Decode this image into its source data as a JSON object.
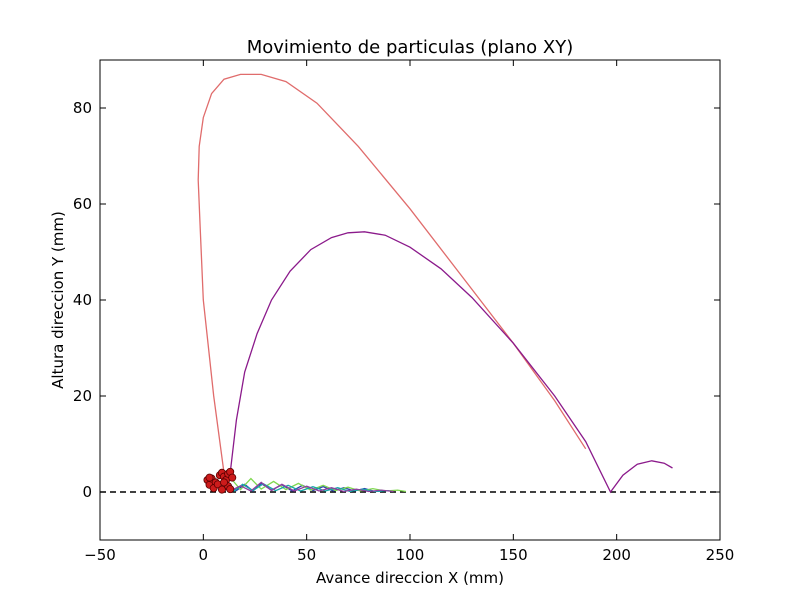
{
  "chart_data": {
    "type": "line",
    "title": "Movimiento de particulas (plano XY)",
    "xlabel": "Avance direccion X (mm)",
    "ylabel": "Altura direccion Y (mm)",
    "xlim": [
      -50,
      250
    ],
    "ylim": [
      -10,
      90
    ],
    "xticks": [
      -50,
      0,
      50,
      100,
      150,
      200,
      250
    ],
    "yticks": [
      0,
      20,
      40,
      60,
      80
    ],
    "xtick_labels": [
      "−50",
      "0",
      "50",
      "100",
      "150",
      "200",
      "250"
    ],
    "ytick_labels": [
      "0",
      "20",
      "40",
      "60",
      "80"
    ],
    "grid": false,
    "legend": "none",
    "reference_line": {
      "y": 0,
      "style": "dashed",
      "color": "#000000"
    },
    "series": [
      {
        "color": "#e06c6c",
        "x": [
          10,
          5,
          0,
          -1.5,
          -2.5,
          -2,
          0,
          4,
          10,
          18,
          28,
          40,
          55,
          75,
          100,
          125,
          150,
          170,
          185
        ],
        "y": [
          4,
          20,
          40,
          55,
          65,
          72,
          78,
          83,
          86,
          87,
          87,
          85.5,
          81,
          72,
          59,
          45,
          31,
          19,
          9
        ]
      },
      {
        "color": "#8b1a8b",
        "x": [
          13,
          16,
          20,
          26,
          33,
          42,
          52,
          62,
          70,
          78,
          88,
          100,
          115,
          130,
          150,
          170,
          185,
          197,
          203,
          210,
          217,
          223,
          227
        ],
        "y": [
          4,
          15,
          25,
          33,
          40,
          46,
          50.5,
          53,
          54,
          54.2,
          53.5,
          51,
          46.5,
          40.5,
          31,
          20,
          10.5,
          0,
          3.5,
          5.8,
          6.5,
          6,
          5
        ]
      },
      {
        "color": "#2a3fae",
        "x": [
          12,
          16,
          20,
          24,
          28,
          33,
          38,
          43,
          48,
          53,
          58,
          63,
          68,
          73,
          78,
          83,
          88
        ],
        "y": [
          1.5,
          0.3,
          1.6,
          0.2,
          1.8,
          0.4,
          1.5,
          0.2,
          1.4,
          0.3,
          1.1,
          0.2,
          0.9,
          0.2,
          0.7,
          0.1,
          0.3
        ]
      },
      {
        "color": "#7fd84f",
        "x": [
          14,
          18,
          23,
          28,
          34,
          40,
          46,
          52,
          58,
          64,
          70,
          76,
          82,
          88,
          94,
          98
        ],
        "y": [
          2.5,
          0.5,
          2.8,
          0.6,
          2.2,
          0.5,
          1.8,
          0.4,
          1.4,
          0.3,
          1.0,
          0.2,
          0.7,
          0.2,
          0.4,
          0.1
        ]
      },
      {
        "color": "#17a6a8",
        "x": [
          11,
          15,
          19,
          24,
          29,
          35,
          41,
          47,
          53,
          59,
          65,
          71,
          77,
          83,
          90
        ],
        "y": [
          1.0,
          0.2,
          1.6,
          0.3,
          1.7,
          0.3,
          1.4,
          0.2,
          1.1,
          0.2,
          0.9,
          0.1,
          0.6,
          0.1,
          0.3
        ]
      },
      {
        "color": "#8f3f9f",
        "x": [
          9,
          13,
          18,
          23,
          28,
          33,
          38,
          44,
          50,
          56,
          62,
          68,
          74,
          80,
          86,
          92
        ],
        "y": [
          0.8,
          0.2,
          1.3,
          0.2,
          2.0,
          0.3,
          1.6,
          0.2,
          1.2,
          0.2,
          0.9,
          0.1,
          0.6,
          0.1,
          0.4,
          0.1
        ]
      }
    ],
    "particles": {
      "color": "#cc1b1b",
      "edge_color": "#5a0000",
      "x": [
        2,
        3,
        4,
        6,
        8,
        9,
        10,
        11,
        12,
        13,
        14,
        5,
        7,
        9,
        12,
        3,
        10,
        13
      ],
      "y": [
        2.5,
        1.5,
        2.8,
        2.0,
        3.5,
        4.0,
        3.2,
        2.5,
        3.8,
        4.2,
        3.0,
        0.8,
        1.6,
        0.5,
        1.2,
        3.0,
        2.0,
        0.6
      ]
    }
  }
}
